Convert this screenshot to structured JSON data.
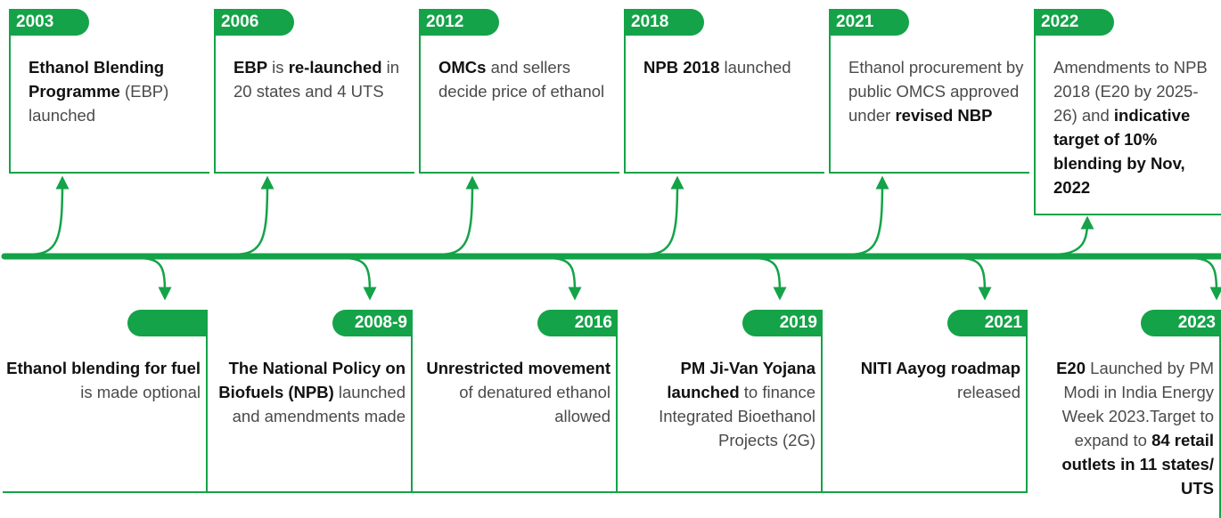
{
  "timeline": {
    "top": [
      {
        "year": "2003",
        "text": [
          {
            "text": "Ethanol Blending Programme",
            "bold": true
          },
          {
            "text": " (EBP) launched",
            "bold": false
          }
        ]
      },
      {
        "year": "2006",
        "text": [
          {
            "text": "EBP",
            "bold": true
          },
          {
            "text": " is ",
            "bold": false
          },
          {
            "text": "re-launched",
            "bold": true
          },
          {
            "text": " in 20 states and 4 UTS",
            "bold": false
          }
        ]
      },
      {
        "year": "2012",
        "text": [
          {
            "text": "OMCs",
            "bold": true
          },
          {
            "text": " and sellers decide price of ethanol",
            "bold": false
          }
        ]
      },
      {
        "year": "2018",
        "text": [
          {
            "text": "NPB 2018",
            "bold": true
          },
          {
            "text": " launched",
            "bold": false
          }
        ]
      },
      {
        "year": "2021",
        "text": [
          {
            "text": "Ethanol procurement by public OMCS approved under ",
            "bold": false
          },
          {
            "text": "revised NBP",
            "bold": true
          }
        ]
      },
      {
        "year": "2022",
        "text": [
          {
            "text": "Amendments to NPB 2018 (E20 by 2025-26) and ",
            "bold": false
          },
          {
            "text": "indicative target of 10% blending by Nov, 2022",
            "bold": true
          }
        ]
      }
    ],
    "bottom": [
      {
        "year": null,
        "text": [
          {
            "text": "Ethanol blending for fuel",
            "bold": true
          },
          {
            "text": " is made optional",
            "bold": false
          }
        ]
      },
      {
        "year": "2008-9",
        "text": [
          {
            "text": "The National Policy on Biofuels (NPB)",
            "bold": true
          },
          {
            "text": " launched and amendments made",
            "bold": false
          }
        ]
      },
      {
        "year": "2016",
        "text": [
          {
            "text": "Unrestricted movement",
            "bold": true
          },
          {
            "text": " of denatured ethanol allowed",
            "bold": false
          }
        ]
      },
      {
        "year": "2019",
        "text": [
          {
            "text": "PM Ji-Van Yojana launched",
            "bold": true
          },
          {
            "text": " to finance Integrated Bioethanol Projects (2G)",
            "bold": false
          }
        ]
      },
      {
        "year": "2021",
        "text": [
          {
            "text": "NITI Aayog roadmap",
            "bold": true
          },
          {
            "text": " released",
            "bold": false
          }
        ]
      },
      {
        "year": "2023",
        "text": [
          {
            "text": "E20",
            "bold": true
          },
          {
            "text": " Launched by PM Modi in India Energy Week 2023.Target to expand to ",
            "bold": false
          },
          {
            "text": "84 retail outlets in 11 states/ UTS",
            "bold": true
          }
        ]
      }
    ]
  }
}
